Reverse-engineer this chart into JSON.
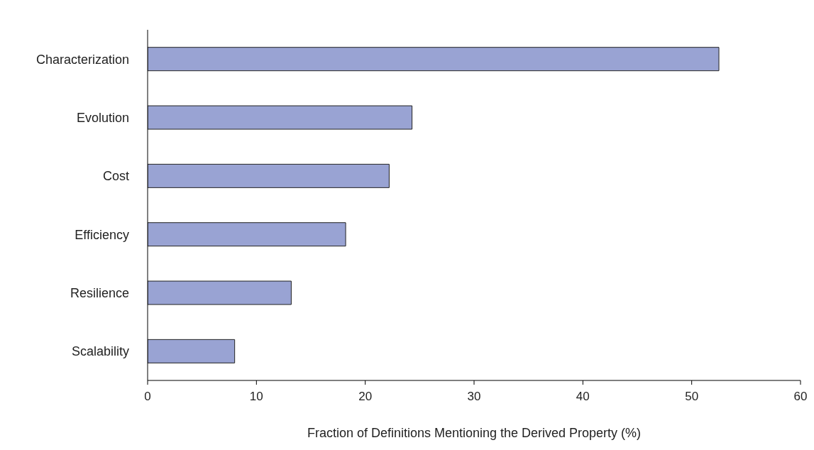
{
  "chart_data": {
    "type": "bar",
    "orientation": "horizontal",
    "xlabel": "Fraction of Definitions Mentioning the Derived Property (%)",
    "categories": [
      "Characterization",
      "Evolution",
      "Cost",
      "Efficiency",
      "Resilience",
      "Scalability"
    ],
    "values": [
      52.5,
      24.3,
      22.2,
      18.2,
      13.2,
      8.0
    ],
    "color": "#99a3d3",
    "xlim": [
      0,
      60
    ],
    "xticks": [
      0,
      10,
      20,
      30,
      40,
      50,
      60
    ],
    "grid": false
  }
}
